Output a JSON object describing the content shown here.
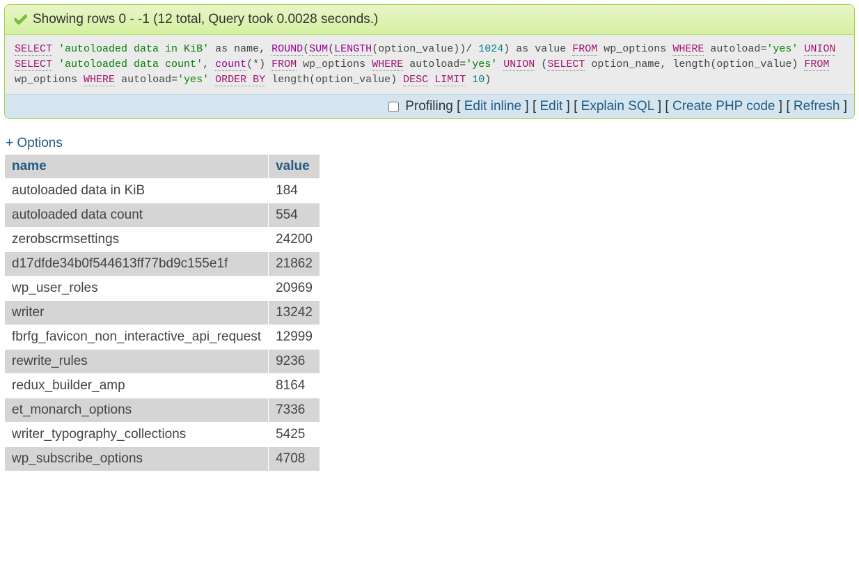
{
  "banner": {
    "message": "Showing rows 0 - -1 (12 total, Query took 0.0028 seconds.)"
  },
  "sql": {
    "tokens": [
      {
        "t": "kw",
        "v": "SELECT"
      },
      {
        "t": "sp",
        "v": " "
      },
      {
        "t": "str",
        "v": "'autoloaded data in KiB'"
      },
      {
        "t": "sp",
        "v": " "
      },
      {
        "t": "txt",
        "v": "as name, "
      },
      {
        "t": "fn",
        "v": "ROUND"
      },
      {
        "t": "txt",
        "v": "("
      },
      {
        "t": "fn",
        "v": "SUM"
      },
      {
        "t": "txt",
        "v": "("
      },
      {
        "t": "fn",
        "v": "LENGTH"
      },
      {
        "t": "txt",
        "v": "(option_value))/ "
      },
      {
        "t": "num",
        "v": "1024"
      },
      {
        "t": "txt",
        "v": ") as value "
      },
      {
        "t": "kw",
        "v": "FROM"
      },
      {
        "t": "sp",
        "v": " "
      },
      {
        "t": "txt",
        "v": "wp_options "
      },
      {
        "t": "kw",
        "v": "WHERE"
      },
      {
        "t": "sp",
        "v": " "
      },
      {
        "t": "txt",
        "v": "autoload="
      },
      {
        "t": "str",
        "v": "'yes'"
      },
      {
        "t": "sp",
        "v": " "
      },
      {
        "t": "kw",
        "v": "UNION"
      },
      {
        "t": "sp",
        "v": " "
      },
      {
        "t": "kw",
        "v": "SELECT"
      },
      {
        "t": "sp",
        "v": " "
      },
      {
        "t": "str",
        "v": "'autoloaded data count'"
      },
      {
        "t": "txt",
        "v": ", "
      },
      {
        "t": "fn",
        "v": "count"
      },
      {
        "t": "txt",
        "v": "(*) "
      },
      {
        "t": "kw",
        "v": "FROM"
      },
      {
        "t": "sp",
        "v": " "
      },
      {
        "t": "txt",
        "v": "wp_options "
      },
      {
        "t": "kw",
        "v": "WHERE"
      },
      {
        "t": "sp",
        "v": " "
      },
      {
        "t": "txt",
        "v": "autoload="
      },
      {
        "t": "str",
        "v": "'yes'"
      },
      {
        "t": "sp",
        "v": " "
      },
      {
        "t": "kw",
        "v": "UNION"
      },
      {
        "t": "sp",
        "v": " "
      },
      {
        "t": "txt",
        "v": "("
      },
      {
        "t": "kw",
        "v": "SELECT"
      },
      {
        "t": "sp",
        "v": " "
      },
      {
        "t": "txt",
        "v": "option_name, length(option_value) "
      },
      {
        "t": "kw",
        "v": "FROM"
      },
      {
        "t": "sp",
        "v": " "
      },
      {
        "t": "txt",
        "v": "wp_options "
      },
      {
        "t": "kw",
        "v": "WHERE"
      },
      {
        "t": "sp",
        "v": " "
      },
      {
        "t": "txt",
        "v": "autoload="
      },
      {
        "t": "str",
        "v": "'yes'"
      },
      {
        "t": "sp",
        "v": " "
      },
      {
        "t": "kw",
        "v": "ORDER BY"
      },
      {
        "t": "sp",
        "v": " "
      },
      {
        "t": "txt",
        "v": "length(option_value) "
      },
      {
        "t": "kw",
        "v": "DESC"
      },
      {
        "t": "sp",
        "v": " "
      },
      {
        "t": "kw",
        "v": "LIMIT"
      },
      {
        "t": "sp",
        "v": " "
      },
      {
        "t": "num",
        "v": "10"
      },
      {
        "t": "txt",
        "v": ")"
      }
    ]
  },
  "toolbar": {
    "profiling_label": "Profiling",
    "links": {
      "edit_inline": "Edit inline",
      "edit": "Edit",
      "explain": "Explain SQL",
      "create_php": "Create PHP code",
      "refresh": "Refresh"
    }
  },
  "options_link": "+ Options",
  "table": {
    "columns": [
      "name",
      "value"
    ],
    "rows": [
      [
        "autoloaded data in KiB",
        "184"
      ],
      [
        "autoloaded data count",
        "554"
      ],
      [
        "zerobscrmsettings",
        "24200"
      ],
      [
        "d17dfde34b0f544613ff77bd9c155e1f",
        "21862"
      ],
      [
        "wp_user_roles",
        "20969"
      ],
      [
        "writer",
        "13242"
      ],
      [
        "fbrfg_favicon_non_interactive_api_request",
        "12999"
      ],
      [
        "rewrite_rules",
        "9236"
      ],
      [
        "redux_builder_amp",
        "8164"
      ],
      [
        "et_monarch_options",
        "7336"
      ],
      [
        "writer_typography_collections",
        "5425"
      ],
      [
        "wp_subscribe_options",
        "4708"
      ]
    ]
  },
  "colors": {
    "banner_bg_top": "#e8f5c8",
    "banner_bg_bottom": "#d5f0a0",
    "banner_border": "#a2d246",
    "sql_bg": "#ebebeb",
    "toolbar_bg": "#d5e5ef",
    "link_color": "#235a81",
    "header_bg": "#d5d5d5",
    "row_even_bg": "#d5d5d5",
    "row_odd_bg": "#ffffff",
    "keyword_color": "#a11573",
    "string_color": "#038003",
    "function_color": "#990099",
    "number_color": "#028080"
  }
}
